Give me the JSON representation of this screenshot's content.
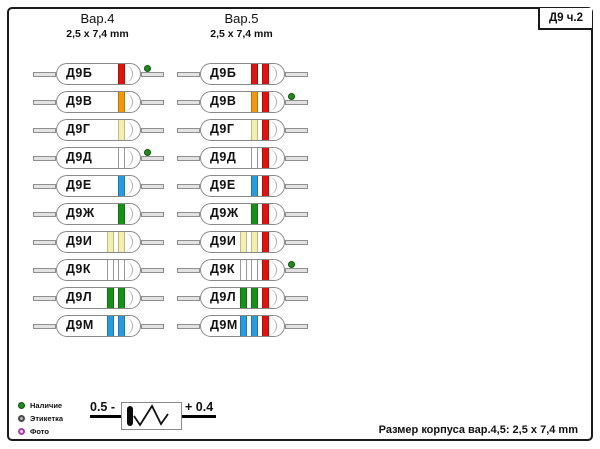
{
  "title_box": {
    "label": "Д9 ч.2"
  },
  "columns": [
    {
      "header": "Вар.4",
      "size": "2,5 x 7,4 mm",
      "diodes": [
        {
          "label": "Д9Б",
          "bands": [
            "red"
          ],
          "dot": true
        },
        {
          "label": "Д9В",
          "bands": [
            "orange"
          ],
          "dot": false
        },
        {
          "label": "Д9Г",
          "bands": [
            "yellow"
          ],
          "dot": false
        },
        {
          "label": "Д9Д",
          "bands": [
            "white"
          ],
          "dot": true
        },
        {
          "label": "Д9Е",
          "bands": [
            "blue"
          ],
          "dot": false
        },
        {
          "label": "Д9Ж",
          "bands": [
            "green"
          ],
          "dot": false
        },
        {
          "label": "Д9И",
          "bands": [
            "yellow",
            "yellow"
          ],
          "dot": false
        },
        {
          "label": "Д9К",
          "bands": [
            "white",
            "white"
          ],
          "dot": false
        },
        {
          "label": "Д9Л",
          "bands": [
            "green",
            "green"
          ],
          "dot": false
        },
        {
          "label": "Д9М",
          "bands": [
            "blue",
            "blue"
          ],
          "dot": false
        }
      ]
    },
    {
      "header": "Вар.5",
      "size": "2,5 x 7,4 mm",
      "diodes": [
        {
          "label": "Д9Б",
          "bands": [
            "red",
            "red"
          ],
          "dot": false
        },
        {
          "label": "Д9В",
          "bands": [
            "orange",
            "red"
          ],
          "dot": true
        },
        {
          "label": "Д9Г",
          "bands": [
            "yellow",
            "red"
          ],
          "dot": false
        },
        {
          "label": "Д9Д",
          "bands": [
            "white",
            "red"
          ],
          "dot": false
        },
        {
          "label": "Д9Е",
          "bands": [
            "blue",
            "red"
          ],
          "dot": false
        },
        {
          "label": "Д9Ж",
          "bands": [
            "green",
            "red"
          ],
          "dot": false
        },
        {
          "label": "Д9И",
          "bands": [
            "yellow",
            "yellow",
            "red"
          ],
          "dot": false
        },
        {
          "label": "Д9К",
          "bands": [
            "white",
            "white",
            "red"
          ],
          "dot": true
        },
        {
          "label": "Д9Л",
          "bands": [
            "green",
            "green",
            "red"
          ],
          "dot": false
        },
        {
          "label": "Д9М",
          "bands": [
            "blue",
            "blue",
            "red"
          ],
          "dot": false
        }
      ]
    }
  ],
  "legend": {
    "items": [
      {
        "key": "availability",
        "label": "Наличие",
        "color": "#1f8a1f"
      },
      {
        "key": "label",
        "label": "Этикетка",
        "color": "#8a8a8a"
      },
      {
        "key": "photo",
        "label": "Фото",
        "color": "#a742a7"
      }
    ]
  },
  "polarity": {
    "left_label": "0.5 -",
    "right_label": "+ 0.4"
  },
  "footer": {
    "text": "Размер корпуса вар.4,5: 2,5 x 7,4 mm"
  },
  "palette": {
    "red": "#dd1410",
    "orange": "#f2960f",
    "yellow": "#f4efad",
    "white": "#ffffff",
    "blue": "#2a9ade",
    "green": "#169016"
  }
}
